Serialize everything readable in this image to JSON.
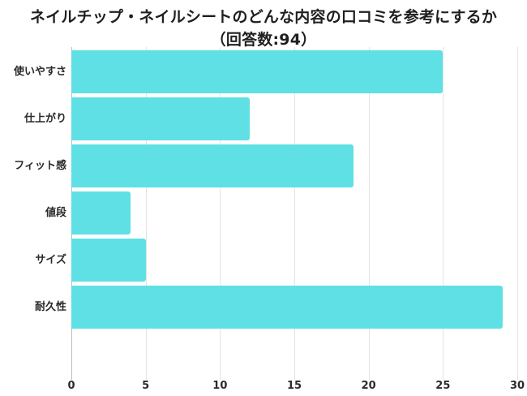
{
  "title": {
    "line1": "ネイルチップ・ネイルシートのどんな内容の口コミを参考にするか",
    "line2": "（回答数:94）"
  },
  "colors": {
    "bar": "#5ee0e5",
    "grid": "#e3e3e3",
    "text": "#1f1f1f"
  },
  "chart_data": {
    "type": "bar",
    "orientation": "horizontal",
    "title": "ネイルチップ・ネイルシートのどんな内容の口コミを参考にするか（回答数:94）",
    "categories": [
      "使いやすさ",
      "仕上がり",
      "フィット感",
      "値段",
      "サイズ",
      "耐久性"
    ],
    "values": [
      25,
      12,
      19,
      4,
      5,
      29
    ],
    "xlabel": "",
    "ylabel": "",
    "xlim": [
      0,
      30
    ],
    "xticks": [
      "0",
      "5",
      "10",
      "15",
      "20",
      "25",
      "30"
    ],
    "grid": true,
    "legend": null
  }
}
